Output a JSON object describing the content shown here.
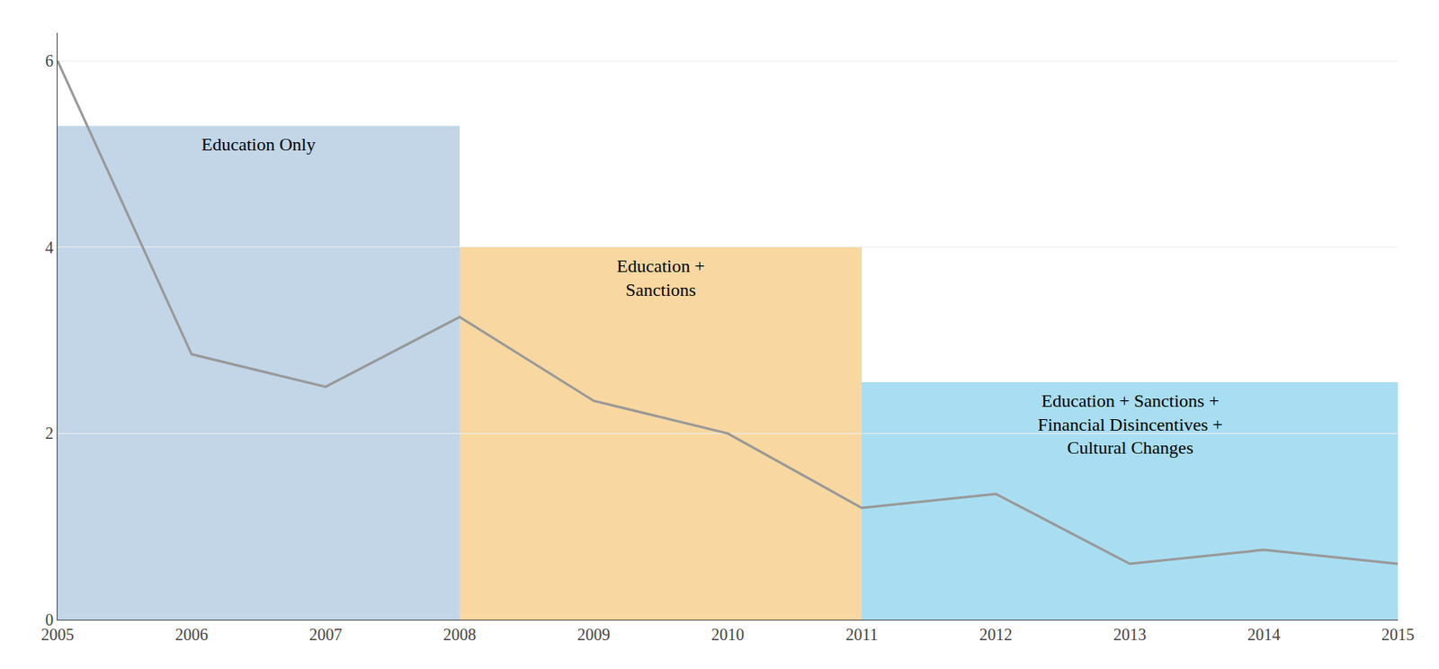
{
  "chart_data": {
    "type": "line",
    "x": [
      2005,
      2006,
      2007,
      2008,
      2009,
      2010,
      2011,
      2012,
      2013,
      2014,
      2015
    ],
    "values": [
      6.0,
      2.85,
      2.5,
      3.25,
      2.35,
      2.0,
      1.2,
      1.35,
      0.6,
      0.75,
      0.6
    ],
    "color": "#999999",
    "xlim": [
      2005,
      2015
    ],
    "ylim": [
      0,
      6.3
    ],
    "xticks": [
      2005,
      2006,
      2007,
      2008,
      2009,
      2010,
      2011,
      2012,
      2013,
      2014,
      2015
    ],
    "yticks": [
      0,
      2,
      4,
      6
    ],
    "grid": true,
    "regions": [
      {
        "x_start": 2005,
        "x_end": 2008,
        "y_bottom": 0,
        "y_top": 5.3,
        "color": "#a8c4de",
        "label": "Education Only"
      },
      {
        "x_start": 2008,
        "x_end": 2011,
        "y_bottom": 0,
        "y_top": 4.0,
        "color": "#f5c878",
        "label": "Education +\nSanctions"
      },
      {
        "x_start": 2011,
        "x_end": 2015,
        "y_bottom": 0,
        "y_top": 2.55,
        "color": "#85d0ed",
        "label": "Education + Sanctions +\nFinancial Disincentives +\nCultural Changes"
      }
    ]
  }
}
